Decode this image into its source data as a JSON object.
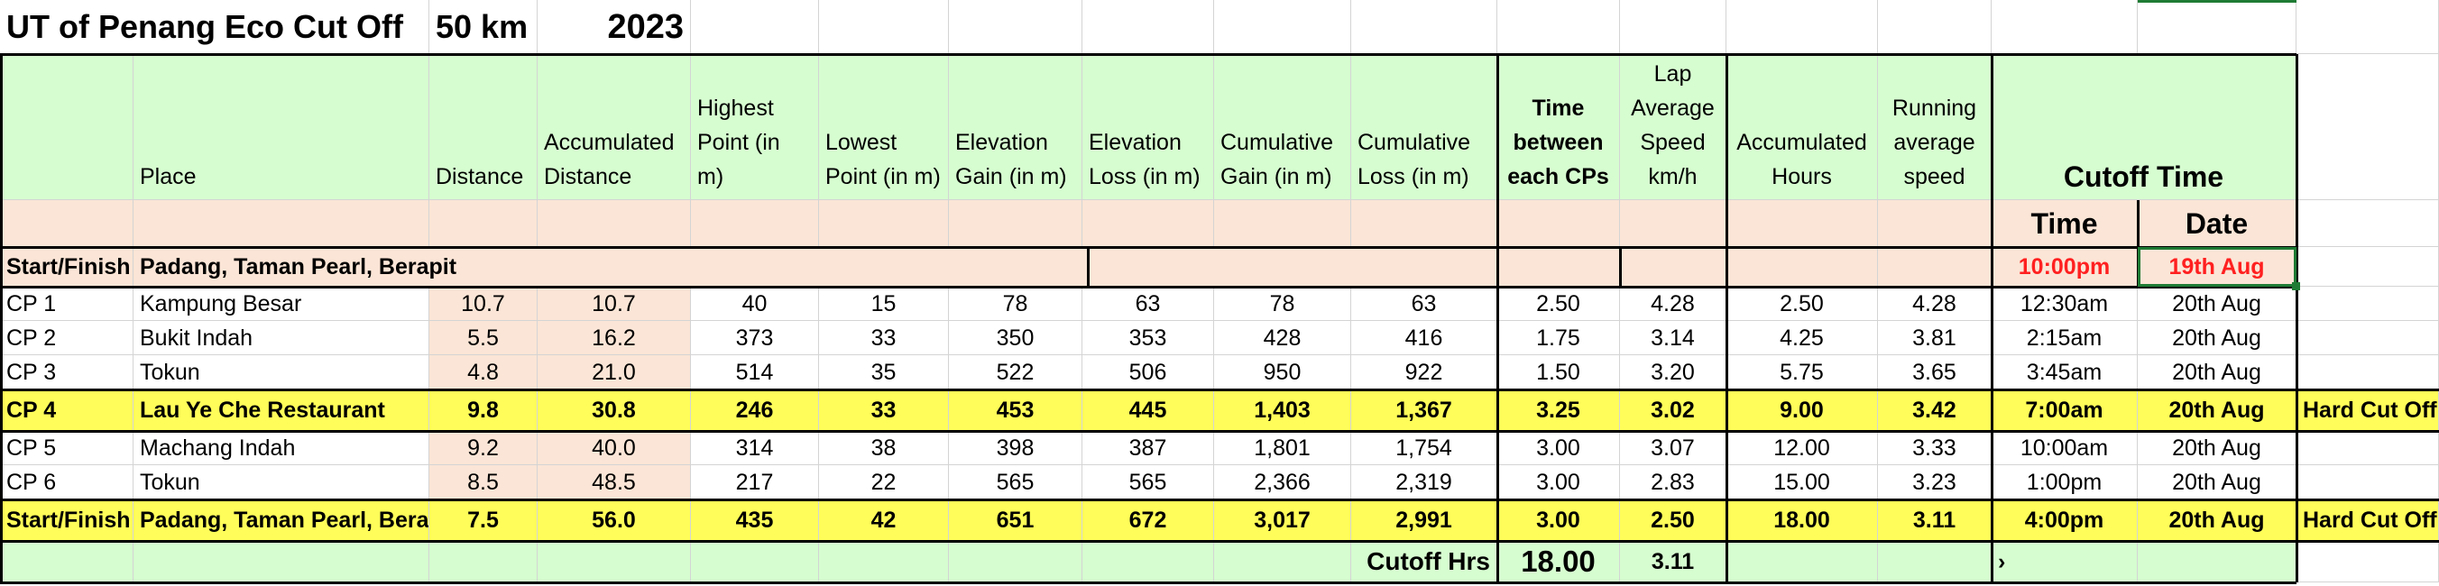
{
  "title": {
    "event": "UT of Penang Eco Cut Off",
    "distance": "50 km",
    "year": "2023"
  },
  "headers": {
    "place": "Place",
    "distance": "Distance",
    "accumulated_distance": "Accumulated Distance",
    "highest_point": "Highest Point (in m)",
    "lowest_point": "Lowest Point (in m)",
    "elevation_gain": "Elevation Gain (in m)",
    "elevation_loss": "Elevation Loss (in m)",
    "cumulative_gain": "Cumulative Gain (in m)",
    "cumulative_loss": "Cumulative Loss (in m)",
    "time_between": "Time between each CPs",
    "lap_avg_speed": "Lap Average Speed km/h",
    "accumulated_hours": "Accumulated Hours",
    "running_avg_speed": "Running average speed",
    "cutoff_time": "Cutoff  Time",
    "time": "Time",
    "date": "Date"
  },
  "start_row": {
    "cp": "Start/Finish",
    "place": "Padang, Taman Pearl, Berapit",
    "time": "10:00pm",
    "date": "19th Aug"
  },
  "rows": [
    {
      "cp": "CP 1",
      "place": "Kampung Besar",
      "dist": "10.7",
      "acc": "10.7",
      "high": "40",
      "low": "15",
      "gain": "78",
      "loss": "63",
      "cgain": "78",
      "closs": "63",
      "tbc": "2.50",
      "lap": "4.28",
      "acch": "2.50",
      "ravg": "4.28",
      "time": "12:30am",
      "date": "20th Aug",
      "note": "",
      "highlight": false
    },
    {
      "cp": "CP 2",
      "place": "Bukit Indah",
      "dist": "5.5",
      "acc": "16.2",
      "high": "373",
      "low": "33",
      "gain": "350",
      "loss": "353",
      "cgain": "428",
      "closs": "416",
      "tbc": "1.75",
      "lap": "3.14",
      "acch": "4.25",
      "ravg": "3.81",
      "time": "2:15am",
      "date": "20th Aug",
      "note": "",
      "highlight": false
    },
    {
      "cp": "CP 3",
      "place": "Tokun",
      "dist": "4.8",
      "acc": "21.0",
      "high": "514",
      "low": "35",
      "gain": "522",
      "loss": "506",
      "cgain": "950",
      "closs": "922",
      "tbc": "1.50",
      "lap": "3.20",
      "acch": "5.75",
      "ravg": "3.65",
      "time": "3:45am",
      "date": "20th Aug",
      "note": "",
      "highlight": false
    },
    {
      "cp": "CP 4",
      "place": "Lau Ye Che Restaurant",
      "dist": "9.8",
      "acc": "30.8",
      "high": "246",
      "low": "33",
      "gain": "453",
      "loss": "445",
      "cgain": "1,403",
      "closs": "1,367",
      "tbc": "3.25",
      "lap": "3.02",
      "acch": "9.00",
      "ravg": "3.42",
      "time": "7:00am",
      "date": "20th Aug",
      "note": "Hard Cut Off",
      "highlight": true
    },
    {
      "cp": "CP 5",
      "place": "Machang Indah",
      "dist": "9.2",
      "acc": "40.0",
      "high": "314",
      "low": "38",
      "gain": "398",
      "loss": "387",
      "cgain": "1,801",
      "closs": "1,754",
      "tbc": "3.00",
      "lap": "3.07",
      "acch": "12.00",
      "ravg": "3.33",
      "time": "10:00am",
      "date": "20th Aug",
      "note": "",
      "highlight": false
    },
    {
      "cp": "CP 6",
      "place": "Tokun",
      "dist": "8.5",
      "acc": "48.5",
      "high": "217",
      "low": "22",
      "gain": "565",
      "loss": "565",
      "cgain": "2,366",
      "closs": "2,319",
      "tbc": "3.00",
      "lap": "2.83",
      "acch": "15.00",
      "ravg": "3.23",
      "time": "1:00pm",
      "date": "20th Aug",
      "note": "",
      "highlight": false
    },
    {
      "cp": "Start/Finish",
      "place": "Padang, Taman Pearl, Berapit",
      "dist": "7.5",
      "acc": "56.0",
      "high": "435",
      "low": "42",
      "gain": "651",
      "loss": "672",
      "cgain": "3,017",
      "closs": "2,991",
      "tbc": "3.00",
      "lap": "2.50",
      "acch": "18.00",
      "ravg": "3.11",
      "time": "4:00pm",
      "date": "20th Aug",
      "note": "Hard Cut Off",
      "highlight": true
    }
  ],
  "footer": {
    "label": "Cutoff Hrs",
    "hours": "18.00",
    "avg": "3.11",
    "marker": "›"
  }
}
